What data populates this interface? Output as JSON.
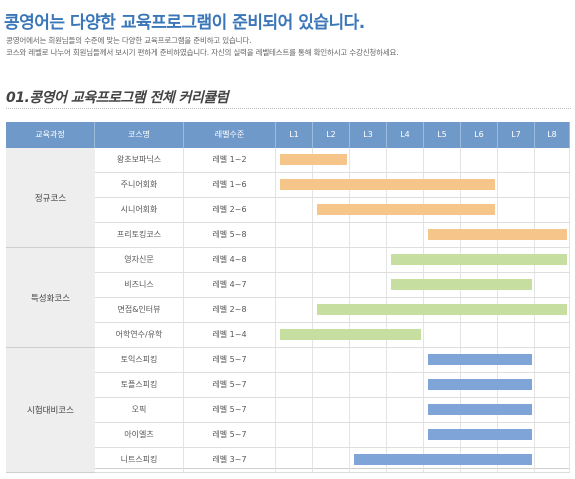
{
  "header": {
    "headline": "콩영어는 다양한 교육프로그램이 준비되어 있습니다.",
    "intro_line1": "콩영어에서는 회원님들의 수준에 맞는 다양한 교육프로그램을 준비하고 있습니다.",
    "intro_line2": "코스와 레벨로 나누어 회원님들께서 보시기 편하게 준비하였습니다. 자신의 실력을 레벨테스트를 통해 확인하시고 수강신청하세요."
  },
  "section": {
    "title": "01.콩영어 교육프로그램 전체 커리큘럼"
  },
  "table": {
    "headers": [
      "교육과정",
      "코스명",
      "레벨수준",
      "L1",
      "L2",
      "L3",
      "L4",
      "L5",
      "L6",
      "L7",
      "L8"
    ],
    "groups": [
      {
        "name": "정규코스",
        "bar_color": "#f6c58a",
        "courses": [
          {
            "name": "왕초보파닉스",
            "level": "레벨 1~2",
            "range": [
              1,
              2
            ]
          },
          {
            "name": "주니어회화",
            "level": "레벨 1~6",
            "range": [
              1,
              6
            ]
          },
          {
            "name": "시니어회화",
            "level": "레벨 2~6",
            "range": [
              2,
              6
            ]
          },
          {
            "name": "프리토킹코스",
            "level": "레벨 5~8",
            "range": [
              5,
              8
            ]
          }
        ]
      },
      {
        "name": "특성화코스",
        "bar_color": "#c6dea0",
        "courses": [
          {
            "name": "영자신문",
            "level": "레벨 4~8",
            "range": [
              4,
              8
            ]
          },
          {
            "name": "비즈니스",
            "level": "레벨 4~7",
            "range": [
              4,
              7
            ]
          },
          {
            "name": "면접&인터뷰",
            "level": "레벨 2~8",
            "range": [
              2,
              8
            ]
          },
          {
            "name": "어학연수/유학",
            "level": "레벨 1~4",
            "range": [
              1,
              4
            ]
          }
        ]
      },
      {
        "name": "시험대비코스",
        "bar_color": "#7fa5d8",
        "courses": [
          {
            "name": "토익스피킹",
            "level": "레벨 5~7",
            "range": [
              5,
              7
            ]
          },
          {
            "name": "토플스피킹",
            "level": "레벨 5~7",
            "range": [
              5,
              7
            ]
          },
          {
            "name": "오픽",
            "level": "레벨 5~7",
            "range": [
              5,
              7
            ]
          },
          {
            "name": "아이엘츠",
            "level": "레벨 5~7",
            "range": [
              5,
              7
            ]
          },
          {
            "name": "니트스피킹",
            "level": "레벨 3~7",
            "range": [
              3,
              7
            ]
          }
        ]
      }
    ]
  }
}
